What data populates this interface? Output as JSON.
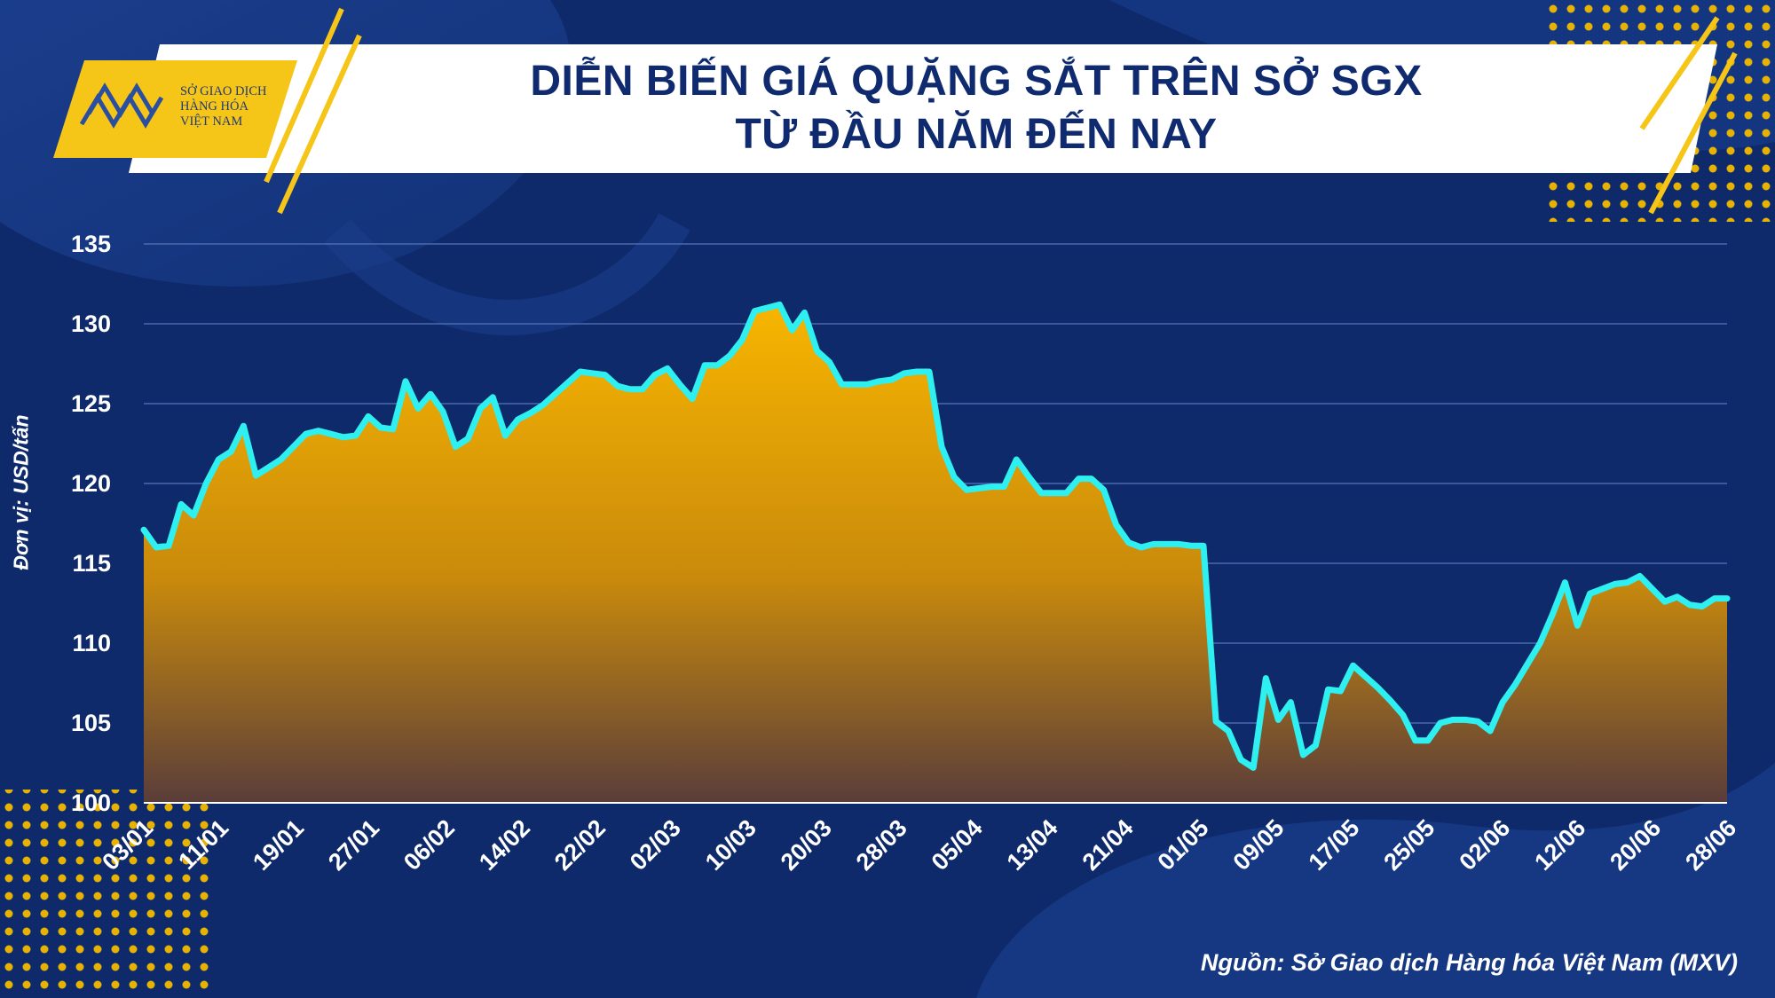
{
  "header": {
    "title_line1": "DIỄN BIẾN GIÁ QUẶNG SẮT TRÊN SỞ SGX",
    "title_line2": "TỪ ĐẦU NĂM ĐẾN NAY"
  },
  "logo": {
    "line1": "SỞ GIAO DỊCH",
    "line2": "HÀNG HÓA",
    "line3": "VIỆT NAM"
  },
  "footer": {
    "source": "Nguồn: Sở Giao dịch Hàng hóa Việt Nam (MXV)"
  },
  "colors": {
    "background": "#0e2a6b",
    "line": "#2ff0f0",
    "fill_top": "#f7b500",
    "fill_bottom": "#5a3d3a",
    "title_text": "#0f2a6e",
    "accent_yellow": "#f5c518"
  },
  "chart_data": {
    "type": "area",
    "title": "DIỄN BIẾN GIÁ QUẶNG SẮT TRÊN SỞ SGX TỪ ĐẦU NĂM ĐẾN NAY",
    "ylabel": "Đơn vị: USD/tấn",
    "xlabel": "",
    "ylim": [
      100,
      135
    ],
    "yticks": [
      100,
      105,
      110,
      115,
      120,
      125,
      130,
      135
    ],
    "grid": true,
    "xtick_labels": [
      "03/01",
      "11/01",
      "19/01",
      "27/01",
      "06/02",
      "14/02",
      "22/02",
      "02/03",
      "10/03",
      "20/03",
      "28/03",
      "05/04",
      "13/04",
      "21/04",
      "01/05",
      "09/05",
      "17/05",
      "25/05",
      "02/06",
      "12/06",
      "20/06",
      "28/06"
    ],
    "series": [
      {
        "values": [
          117.1,
          116.0,
          116.1,
          118.7,
          118.0,
          120.0,
          121.5,
          122.0,
          123.6,
          120.5,
          121.0,
          121.5,
          122.3,
          123.1,
          123.3,
          123.1,
          122.9,
          123.0,
          124.2,
          123.5,
          123.4,
          126.4,
          124.7,
          125.6,
          124.5,
          122.3,
          122.8,
          124.7,
          125.4,
          123.0,
          124.0,
          124.4,
          124.9,
          125.6,
          126.3,
          127.0,
          126.9,
          126.8,
          126.1,
          125.9,
          125.9,
          126.8,
          127.2,
          126.2,
          125.3,
          127.4,
          127.4,
          128.0,
          129.0,
          130.8,
          131.0,
          131.2,
          129.6,
          130.7,
          128.3,
          127.6,
          126.2,
          126.2,
          126.2,
          126.4,
          126.5,
          126.9,
          127.0,
          127.0,
          122.3,
          120.4,
          119.6,
          119.7,
          119.8,
          119.8,
          121.5,
          120.4,
          119.4,
          119.4,
          119.4,
          120.3,
          120.3,
          119.6,
          117.4,
          116.3,
          116.0,
          116.2,
          116.2,
          116.2,
          116.1,
          116.1,
          105.1,
          104.5,
          102.7,
          102.2,
          107.8,
          105.2,
          106.3,
          103.0,
          103.6,
          107.1,
          107.0,
          108.6,
          107.9,
          107.2,
          106.4,
          105.5,
          103.9,
          103.9,
          105.0,
          105.2,
          105.2,
          105.1,
          104.5,
          106.3,
          107.4,
          108.7,
          110.0,
          111.8,
          113.8,
          111.1,
          113.1,
          113.4,
          113.7,
          113.8,
          114.2,
          113.4,
          112.6,
          112.9,
          112.4,
          112.3,
          112.8,
          112.8
        ]
      }
    ]
  }
}
